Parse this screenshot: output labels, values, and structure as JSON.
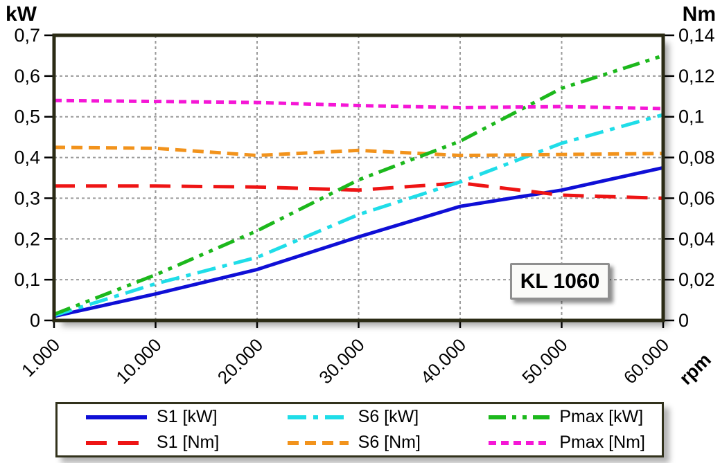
{
  "chart_data": {
    "type": "line",
    "badge": "KL 1060",
    "x_unit": "rpm",
    "x": [
      1000,
      10000,
      20000,
      30000,
      40000,
      50000,
      60000
    ],
    "x_tick_labels": [
      "1.000",
      "10.000",
      "20.000",
      "30.000",
      "40.000",
      "50.000",
      "60.000"
    ],
    "left_axis": {
      "unit": "kW",
      "range": [
        0,
        0.7
      ],
      "tick_labels": [
        "0",
        "0,1",
        "0,2",
        "0,3",
        "0,4",
        "0,5",
        "0,6",
        "0,7"
      ]
    },
    "right_axis": {
      "unit": "Nm",
      "range": [
        0,
        0.14
      ],
      "tick_labels": [
        "0",
        "0,02",
        "0,04",
        "0,06",
        "0,08",
        "0,1",
        "0,12",
        "0,14"
      ]
    },
    "grid": true,
    "legend_position": "bottom",
    "legend_order": [
      "S1 [kW]",
      "S6 [kW]",
      "Pmax [kW]",
      "S1 [Nm]",
      "S6 [Nm]",
      "Pmax [Nm]"
    ],
    "series": [
      {
        "name": "S1 [kW]",
        "axis": "left",
        "color": "#0f0fd6",
        "dash": "solid",
        "values": [
          0.01,
          0.065,
          0.125,
          0.205,
          0.28,
          0.32,
          0.375
        ]
      },
      {
        "name": "S1 [Nm]",
        "axis": "right",
        "color": "#ee1414",
        "dash": "long-dash",
        "values": [
          0.066,
          0.066,
          0.0655,
          0.064,
          0.0675,
          0.0615,
          0.06
        ]
      },
      {
        "name": "S6 [kW]",
        "axis": "left",
        "color": "#1fdde8",
        "dash": "dash-dot",
        "values": [
          0.012,
          0.09,
          0.155,
          0.26,
          0.34,
          0.435,
          0.505
        ]
      },
      {
        "name": "S6 [Nm]",
        "axis": "right",
        "color": "#f2931c",
        "dash": "dash",
        "values": [
          0.085,
          0.0845,
          0.081,
          0.0835,
          0.081,
          0.0815,
          0.082
        ]
      },
      {
        "name": "Pmax [kW]",
        "axis": "left",
        "color": "#1cb81c",
        "dash": "dash-dot-dot",
        "values": [
          0.015,
          0.112,
          0.22,
          0.345,
          0.44,
          0.57,
          0.65
        ]
      },
      {
        "name": "Pmax [Nm]",
        "axis": "right",
        "color": "#f516d6",
        "dash": "short-dash",
        "values": [
          0.108,
          0.1075,
          0.107,
          0.1055,
          0.1045,
          0.105,
          0.104
        ]
      }
    ],
    "frame_color": "#2b2b15",
    "grid_color": "#9a9a9a"
  }
}
